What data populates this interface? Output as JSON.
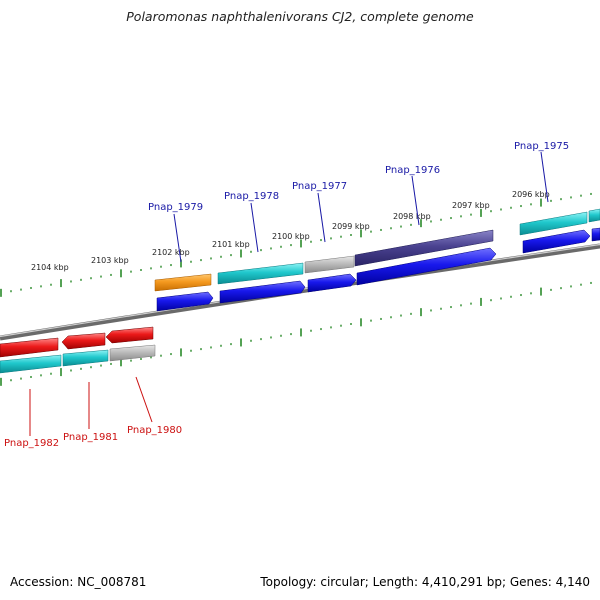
{
  "title": "Polaromonas naphthalenivorans CJ2, complete genome",
  "footer": {
    "accession": "Accession: NC_008781",
    "info": "Topology: circular; Length: 4,410,291 bp; Genes: 4,140"
  },
  "colors": {
    "orange": "#f0901a",
    "cyan": "#18c2c8",
    "gray": "#b4b4b4",
    "purple": "#4a4290",
    "red": "#e8121a",
    "blue": "#1414e6",
    "tick": "#2a8a2a",
    "top_label": "#1a1aa6",
    "bottom_label": "#cc1111"
  },
  "kbp_labels": [
    "2104 kbp",
    "2103 kbp",
    "2102 kbp",
    "2101 kbp",
    "2100 kbp",
    "2099 kbp",
    "2098 kbp",
    "2097 kbp",
    "2096 kbp"
  ],
  "top_genes": [
    "Pnap_1979",
    "Pnap_1978",
    "Pnap_1977",
    "Pnap_1976",
    "Pnap_1975"
  ],
  "bottom_genes": [
    "Pnap_1982",
    "Pnap_1981",
    "Pnap_1980"
  ]
}
